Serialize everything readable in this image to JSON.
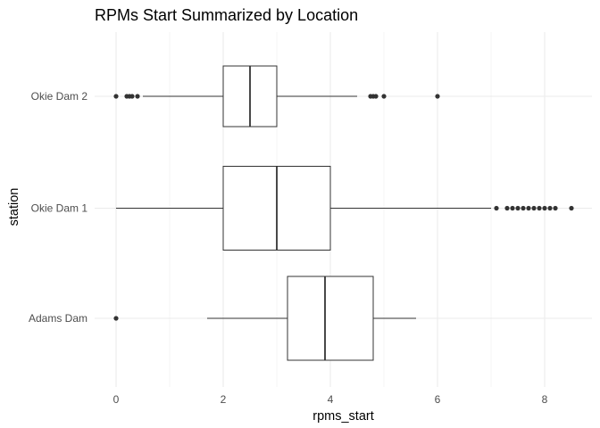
{
  "chart_data": {
    "type": "boxplot",
    "orientation": "horizontal",
    "title": "RPMs Start Summarized by Location",
    "xlabel": "rpms_start",
    "ylabel": "station",
    "xlim": [
      -0.4,
      8.9
    ],
    "x_ticks": [
      "0",
      "2",
      "4",
      "6",
      "8"
    ],
    "grid": true,
    "legend": "none",
    "categories": [
      "Okie Dam 2",
      "Okie Dam 1",
      "Adams Dam"
    ],
    "series": [
      {
        "category": "Okie Dam 2",
        "whisker_low": 0.5,
        "q1": 2.0,
        "median": 2.5,
        "q3": 3.0,
        "whisker_high": 4.5,
        "outliers": [
          0.0,
          0.2,
          0.25,
          0.3,
          0.4,
          4.75,
          4.8,
          4.85,
          5.0,
          6.0
        ]
      },
      {
        "category": "Okie Dam 1",
        "whisker_low": 0.0,
        "q1": 2.0,
        "median": 3.0,
        "q3": 4.0,
        "whisker_high": 7.0,
        "outliers": [
          7.1,
          7.3,
          7.4,
          7.5,
          7.6,
          7.7,
          7.8,
          7.9,
          8.0,
          8.1,
          8.2,
          8.5
        ]
      },
      {
        "category": "Adams Dam",
        "whisker_low": 1.7,
        "q1": 3.2,
        "median": 3.9,
        "q3": 4.8,
        "whisker_high": 5.6,
        "outliers": [
          0.0
        ]
      }
    ],
    "colors": {
      "box_fill": "#ffffff",
      "box_stroke": "#333333",
      "outlier": "#333333",
      "grid": "#ebebeb"
    }
  }
}
